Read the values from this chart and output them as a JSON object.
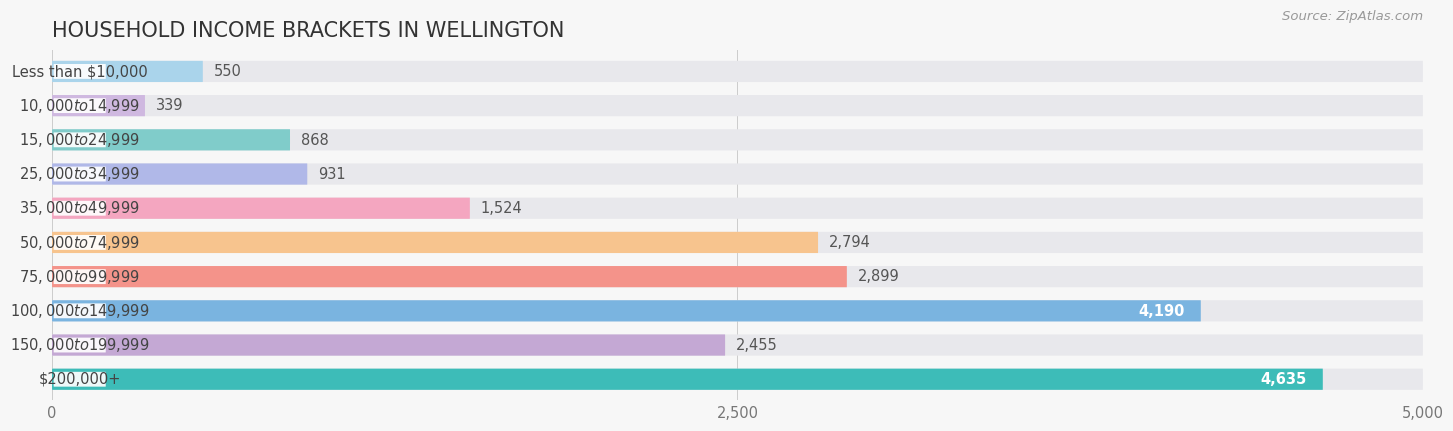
{
  "title": "HOUSEHOLD INCOME BRACKETS IN WELLINGTON",
  "source": "Source: ZipAtlas.com",
  "categories": [
    "Less than $10,000",
    "$10,000 to $14,999",
    "$15,000 to $24,999",
    "$25,000 to $34,999",
    "$35,000 to $49,999",
    "$50,000 to $74,999",
    "$75,000 to $99,999",
    "$100,000 to $149,999",
    "$150,000 to $199,999",
    "$200,000+"
  ],
  "values": [
    550,
    339,
    868,
    931,
    1524,
    2794,
    2899,
    4190,
    2455,
    4635
  ],
  "bar_colors": [
    "#aad4eb",
    "#cfb8e0",
    "#80ccca",
    "#b0b8e8",
    "#f4a6c0",
    "#f7c48e",
    "#f4938a",
    "#7ab4e0",
    "#c4a8d4",
    "#3dbcb8"
  ],
  "background_color": "#f7f7f7",
  "bar_bg_color": "#e8e8ec",
  "xlim": [
    0,
    5000
  ],
  "xticks": [
    0,
    2500,
    5000
  ],
  "value_inside_threshold": 4000,
  "title_fontsize": 15,
  "label_fontsize": 10.5,
  "value_fontsize": 10.5,
  "source_fontsize": 9.5
}
